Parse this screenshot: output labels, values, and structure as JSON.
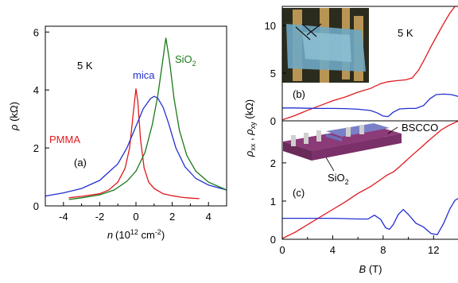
{
  "chart_data": [
    {
      "id": "left",
      "type": "line",
      "panel_label": "(a)",
      "temperature": "5 K",
      "xlabel": {
        "sym": "n",
        "unit": "(10",
        "exp": "12",
        "unit2": " cm",
        "exp2": "-2",
        "close": ")"
      },
      "ylabel": {
        "sym": "ρ",
        "unit": " (kΩ)"
      },
      "xlim": [
        -5,
        5
      ],
      "ylim": [
        0,
        6.2
      ],
      "xticks": [
        -4,
        -2,
        0,
        2,
        4
      ],
      "yticks": [
        0,
        2,
        4,
        6
      ],
      "series": [
        {
          "name": "PMMA",
          "color": "#e0191e",
          "points": [
            [
              -3.7,
              0.28
            ],
            [
              -3,
              0.33
            ],
            [
              -2,
              0.42
            ],
            [
              -1.5,
              0.55
            ],
            [
              -1,
              0.82
            ],
            [
              -0.6,
              1.3
            ],
            [
              -0.35,
              2.0
            ],
            [
              -0.15,
              3.2
            ],
            [
              0,
              4.05
            ],
            [
              0.1,
              3.6
            ],
            [
              0.25,
              2.3
            ],
            [
              0.45,
              1.3
            ],
            [
              0.7,
              0.82
            ],
            [
              1,
              0.6
            ],
            [
              1.5,
              0.42
            ],
            [
              2,
              0.35
            ],
            [
              2.5,
              0.3
            ],
            [
              3,
              0.27
            ],
            [
              3.5,
              0.25
            ]
          ]
        },
        {
          "name": "mica",
          "color": "#2230d0",
          "points": [
            [
              -5,
              0.34
            ],
            [
              -4,
              0.45
            ],
            [
              -3,
              0.6
            ],
            [
              -2,
              0.88
            ],
            [
              -1,
              1.45
            ],
            [
              -0.5,
              2.0
            ],
            [
              0,
              2.75
            ],
            [
              0.4,
              3.35
            ],
            [
              0.8,
              3.7
            ],
            [
              1.0,
              3.78
            ],
            [
              1.2,
              3.72
            ],
            [
              1.5,
              3.4
            ],
            [
              1.8,
              2.85
            ],
            [
              2.2,
              2.0
            ],
            [
              2.7,
              1.35
            ],
            [
              3.3,
              0.95
            ],
            [
              4,
              0.72
            ],
            [
              5,
              0.55
            ]
          ]
        },
        {
          "name": "SiO2",
          "label_main": "SiO",
          "label_sub": "2",
          "color": "#1a7a1a",
          "points": [
            [
              -3.7,
              0.22
            ],
            [
              -3,
              0.28
            ],
            [
              -2,
              0.38
            ],
            [
              -1.2,
              0.55
            ],
            [
              -0.5,
              0.85
            ],
            [
              0,
              1.2
            ],
            [
              0.5,
              1.85
            ],
            [
              0.9,
              2.8
            ],
            [
              1.2,
              3.8
            ],
            [
              1.45,
              4.9
            ],
            [
              1.65,
              5.8
            ],
            [
              1.85,
              5.0
            ],
            [
              2.1,
              3.7
            ],
            [
              2.4,
              2.6
            ],
            [
              2.8,
              1.75
            ],
            [
              3.3,
              1.2
            ],
            [
              4,
              0.82
            ],
            [
              5,
              0.55
            ]
          ]
        }
      ]
    },
    {
      "id": "right-top",
      "type": "line",
      "panel_label": "(b)",
      "temperature": "5 K",
      "xlim": [
        0,
        14
      ],
      "ylim": [
        0,
        12
      ],
      "yticks": [
        0,
        5,
        10
      ],
      "inset_note": "optical micrograph of device",
      "series": [
        {
          "name": "rho_xy",
          "color": "#e0191e",
          "points": [
            [
              0,
              0.1
            ],
            [
              1,
              0.55
            ],
            [
              2,
              1.1
            ],
            [
              3,
              1.6
            ],
            [
              4,
              2.1
            ],
            [
              5,
              2.5
            ],
            [
              6,
              3.0
            ],
            [
              7,
              3.4
            ],
            [
              7.8,
              3.9
            ],
            [
              8.4,
              4.1
            ],
            [
              9,
              4.2
            ],
            [
              9.8,
              4.3
            ],
            [
              10.3,
              4.5
            ],
            [
              10.8,
              5.3
            ],
            [
              11.3,
              6.5
            ],
            [
              11.8,
              7.8
            ],
            [
              12.3,
              9.0
            ],
            [
              12.8,
              10.2
            ],
            [
              13.3,
              11.3
            ],
            [
              13.7,
              12
            ]
          ]
        },
        {
          "name": "rho_xx",
          "color": "#2230d0",
          "points": [
            [
              0,
              1.35
            ],
            [
              1,
              1.35
            ],
            [
              2,
              1.32
            ],
            [
              3,
              1.3
            ],
            [
              4,
              1.3
            ],
            [
              5,
              1.28
            ],
            [
              6,
              1.22
            ],
            [
              7,
              1.08
            ],
            [
              7.5,
              0.85
            ],
            [
              8,
              0.5
            ],
            [
              8.4,
              0.45
            ],
            [
              8.8,
              0.9
            ],
            [
              9.3,
              1.25
            ],
            [
              10,
              1.3
            ],
            [
              10.6,
              1.3
            ],
            [
              11.2,
              1.6
            ],
            [
              11.7,
              2.3
            ],
            [
              12.2,
              2.75
            ],
            [
              12.8,
              2.8
            ],
            [
              13.4,
              2.75
            ],
            [
              14,
              2.55
            ]
          ]
        }
      ]
    },
    {
      "id": "right-bottom",
      "type": "line",
      "panel_label": "(c)",
      "xlabel": {
        "sym": "B",
        "unit": " (T)"
      },
      "ylabel": {
        "sym1": "ρ",
        "sub1": "xx",
        "mid": " , ",
        "sym2": "ρ",
        "sub2": "xy",
        "unit": " (kΩ)"
      },
      "xlim": [
        0,
        14
      ],
      "ylim": [
        0,
        3.1
      ],
      "xticks": [
        0,
        4,
        8,
        12
      ],
      "yticks": [
        0,
        1,
        2
      ],
      "labels": {
        "bscco": "BSCCO",
        "sio2_main": "SiO",
        "sio2_sub": "2"
      },
      "series": [
        {
          "name": "rho_xy",
          "color": "#e0191e",
          "points": [
            [
              0,
              0.02
            ],
            [
              1,
              0.18
            ],
            [
              2,
              0.38
            ],
            [
              3,
              0.58
            ],
            [
              4,
              0.78
            ],
            [
              5,
              0.98
            ],
            [
              6,
              1.2
            ],
            [
              7,
              1.38
            ],
            [
              7.8,
              1.56
            ],
            [
              8.3,
              1.68
            ],
            [
              8.8,
              1.76
            ],
            [
              9.3,
              1.9
            ],
            [
              9.8,
              2.05
            ],
            [
              10.3,
              2.2
            ],
            [
              11,
              2.4
            ],
            [
              11.6,
              2.58
            ],
            [
              12.1,
              2.72
            ],
            [
              12.6,
              2.86
            ],
            [
              13.2,
              2.98
            ],
            [
              14,
              3.1
            ]
          ]
        },
        {
          "name": "rho_xx",
          "color": "#2230d0",
          "points": [
            [
              0,
              0.55
            ],
            [
              1,
              0.55
            ],
            [
              2,
              0.55
            ],
            [
              3,
              0.55
            ],
            [
              4,
              0.55
            ],
            [
              5,
              0.54
            ],
            [
              6,
              0.53
            ],
            [
              6.8,
              0.53
            ],
            [
              7.3,
              0.63
            ],
            [
              7.8,
              0.52
            ],
            [
              8.2,
              0.3
            ],
            [
              8.5,
              0.26
            ],
            [
              8.8,
              0.38
            ],
            [
              9.2,
              0.65
            ],
            [
              9.6,
              0.78
            ],
            [
              10,
              0.65
            ],
            [
              10.6,
              0.42
            ],
            [
              11.2,
              0.32
            ],
            [
              11.8,
              0.15
            ],
            [
              12.3,
              0.12
            ],
            [
              12.8,
              0.42
            ],
            [
              13.3,
              0.8
            ],
            [
              13.7,
              1.02
            ],
            [
              14,
              1.08
            ]
          ]
        }
      ]
    }
  ]
}
